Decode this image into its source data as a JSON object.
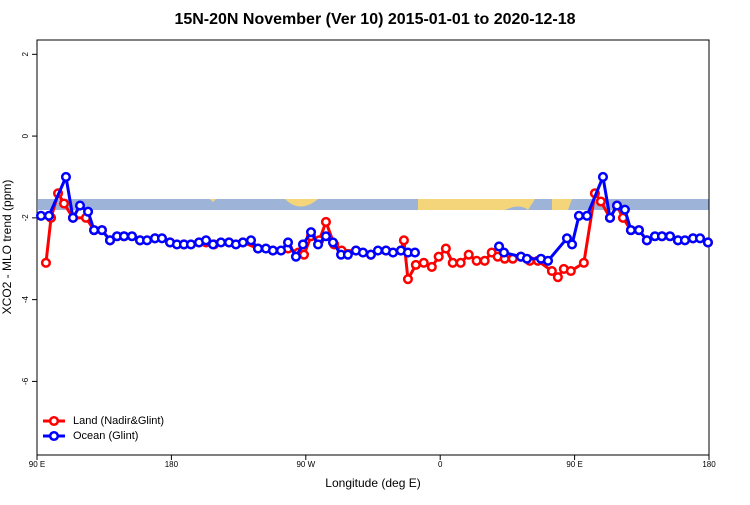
{
  "chart_data": {
    "type": "line",
    "title": "15N-20N November (Ver 10)   2015-01-01 to 2020-12-18",
    "x_label": "Longitude (deg E)",
    "y_label": "XCO2 - MLO trend (ppm)",
    "xlim": [
      90,
      540
    ],
    "ylim": [
      -7.8,
      2.35
    ],
    "xticks": [
      {
        "value": 90,
        "label": "90 E"
      },
      180,
      {
        "value": 270,
        "label": "90 W"
      },
      {
        "value": 360,
        "label": "0"
      },
      {
        "value": 450,
        "label": "90 E"
      },
      {
        "value": 540,
        "label": "180"
      }
    ],
    "yticks": [
      2,
      0,
      -2,
      -4,
      -6
    ],
    "legend": "bottom-left",
    "series": [
      {
        "name": "Land (Nadir&Glint)",
        "color": "#ff0000",
        "x": [
          96,
          99.4,
          104.1,
          108.1,
          114.1,
          122.8,
          128.2,
          133.5,
          138.9,
          148.3,
          159,
          169,
          179.1,
          188.4,
          198.5,
          203.2,
          208.6,
          218.6,
          227.9,
          238,
          248,
          258.1,
          265,
          268.8,
          273.5,
          279,
          283.5,
          289,
          294,
          303.6,
          313.6,
          323.7,
          333.7,
          335.7,
          338.4,
          343.7,
          349,
          354.4,
          359,
          363.8,
          368.4,
          373.7,
          379.1,
          384.4,
          389.8,
          394.5,
          398.5,
          403.2,
          408.6,
          414,
          420,
          425.4,
          434.8,
          438.8,
          442.8,
          447.5,
          456.2,
          463.6,
          467.6,
          473.7,
          478.4,
          482.4,
          487.7,
          493.1,
          498.4,
          508.5,
          519.2,
          529.3,
          539.3
        ],
        "values": [
          -3.1,
          -2.0,
          -1.4,
          -1.65,
          -2.0,
          -2.0,
          -2.3,
          -2.3,
          -2.55,
          -2.45,
          -2.55,
          -2.5,
          -2.6,
          -2.65,
          -2.6,
          -2.6,
          -2.65,
          -2.6,
          -2.6,
          -2.75,
          -2.8,
          -2.75,
          -2.85,
          -2.9,
          -2.45,
          -2.55,
          -2.1,
          -2.65,
          -2.8,
          -2.8,
          -2.9,
          -2.8,
          -2.8,
          -2.55,
          -3.5,
          -3.15,
          -3.1,
          -3.2,
          -2.95,
          -2.75,
          -3.1,
          -3.1,
          -2.9,
          -3.05,
          -3.05,
          -2.85,
          -2.95,
          -3.0,
          -3.0,
          -2.95,
          -3.05,
          -3.05,
          -3.3,
          -3.45,
          -3.25,
          -3.3,
          -3.1,
          -1.4,
          -1.6,
          -2.0,
          -1.7,
          -2.0,
          -2.3,
          -2.3,
          -2.55,
          -2.45,
          -2.55,
          -2.5,
          -2.6
        ]
      },
      {
        "name": "Ocean (Glint)",
        "color": "#0000ff",
        "x": [
          92.7,
          98,
          109.4,
          114.1,
          118.8,
          124.2,
          128.2,
          133.5,
          138.9,
          143.6,
          148.3,
          153.6,
          159,
          163.7,
          169,
          173.7,
          179.1,
          183.7,
          188.4,
          193.1,
          198.5,
          203.2,
          207.9,
          213.2,
          218.6,
          223.2,
          227.9,
          233.3,
          238,
          243.3,
          248,
          253.4,
          258.1,
          263.4,
          268.1,
          273.5,
          278.2,
          283.5,
          288.2,
          293.6,
          298.2,
          303.6,
          308.3,
          313.6,
          318.3,
          323.7,
          328.4,
          333.7,
          338.4,
          343.1,
          371,
          399.4,
          402.7,
          414.1,
          418.1,
          427.5,
          432.2,
          444.9,
          448.3,
          452.9,
          458.3,
          469,
          473.7,
          478.4,
          483.7,
          487.7,
          493.1,
          498.4,
          503.8,
          508.5,
          513.9,
          519.2,
          523.9,
          529.3,
          534,
          539.3
        ],
        "values": [
          -1.95,
          -1.95,
          -1.0,
          -2.0,
          -1.7,
          -1.85,
          -2.3,
          -2.3,
          -2.55,
          -2.45,
          -2.45,
          -2.45,
          -2.55,
          -2.55,
          -2.5,
          -2.5,
          -2.6,
          -2.65,
          -2.65,
          -2.65,
          -2.6,
          -2.55,
          -2.65,
          -2.6,
          -2.6,
          -2.65,
          -2.6,
          -2.55,
          -2.75,
          -2.75,
          -2.8,
          -2.8,
          -2.6,
          -2.95,
          -2.65,
          -2.35,
          -2.65,
          -2.45,
          -2.6,
          -2.9,
          -2.9,
          -2.8,
          -2.85,
          -2.9,
          -2.8,
          -2.8,
          -2.85,
          -2.8,
          -2.85,
          -2.85,
          null,
          -2.7,
          -2.85,
          -2.95,
          -3.0,
          -3.0,
          -3.05,
          -2.5,
          -2.65,
          -1.95,
          -1.95,
          -1.0,
          -2.0,
          -1.7,
          -1.8,
          -2.3,
          -2.3,
          -2.55,
          -2.45,
          -2.45,
          -2.45,
          -2.55,
          -2.55,
          -2.5,
          -2.5,
          -2.6
        ]
      }
    ]
  }
}
